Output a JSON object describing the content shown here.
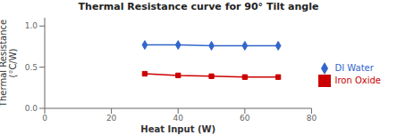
{
  "chart_data": {
    "type": "line",
    "title": "Thermal Resistance curve for 90° Tilt angle",
    "x_label": "Heat Input (W)",
    "y_label": "Thermal Resistance\n(°C/W)",
    "x": [
      30,
      40,
      50,
      60,
      70
    ],
    "series": [
      {
        "name": "DI Water",
        "color": "#3366CC",
        "marker": "diamond",
        "values": [
          0.77,
          0.77,
          0.76,
          0.76,
          0.76
        ]
      },
      {
        "name": "Iron Oxide",
        "color": "#CC0000",
        "marker": "square",
        "values": [
          0.42,
          0.4,
          0.39,
          0.38,
          0.38
        ]
      }
    ],
    "xlim": [
      0,
      80
    ],
    "xticks": [
      0,
      20,
      40,
      60,
      80
    ],
    "ylim": [
      0,
      1.1
    ],
    "yticks": [
      {
        "value": 0,
        "label": "0.0"
      },
      0.5,
      {
        "value": 1,
        "label": "1.0"
      }
    ],
    "grid": false,
    "legend": "right"
  }
}
